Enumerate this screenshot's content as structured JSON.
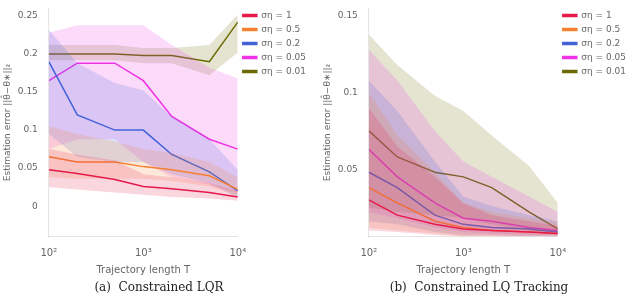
{
  "chart_data": [
    {
      "type": "line",
      "title": "(a)  Constrained LQR",
      "x_label": "Trajectory length T",
      "y_label": "Estimation error ||θ̂−θ∗||₂",
      "x": [
        100,
        200,
        500,
        1000,
        2000,
        5000,
        10000
      ],
      "xlim": [
        100,
        10000
      ],
      "xticks": [
        {
          "value": 100,
          "label": "10²"
        },
        {
          "value": 1000,
          "label": "10³"
        },
        {
          "value": 10000,
          "label": "10⁴"
        }
      ],
      "ylim": [
        -0.04,
        0.26
      ],
      "yticks": [
        0,
        0.05,
        0.1,
        0.15,
        0.2,
        0.25
      ],
      "log": "x",
      "grid": false,
      "legend": "upper right",
      "series": [
        {
          "name": "ση = 1",
          "color": "#e6194b",
          "values": [
            0.048,
            0.043,
            0.035,
            0.026,
            0.023,
            0.018,
            0.012
          ],
          "y_lo": [
            0.025,
            0.022,
            0.018,
            0.015,
            0.012,
            0.01,
            0.007
          ],
          "y_hi": [
            0.075,
            0.068,
            0.06,
            0.042,
            0.038,
            0.03,
            0.02
          ]
        },
        {
          "name": "ση = 0.5",
          "color": "#f58231",
          "values": [
            0.065,
            0.058,
            0.058,
            0.052,
            0.048,
            0.04,
            0.022
          ],
          "y_lo": [
            0.038,
            0.036,
            0.036,
            0.036,
            0.033,
            0.026,
            0.014
          ],
          "y_hi": [
            0.105,
            0.095,
            0.085,
            0.075,
            0.07,
            0.058,
            0.038
          ]
        },
        {
          "name": "ση = 0.2",
          "color": "#4363d8",
          "values": [
            0.19,
            0.12,
            0.1,
            0.1,
            0.068,
            0.045,
            0.02
          ],
          "y_lo": [
            0.095,
            0.065,
            0.058,
            0.058,
            0.042,
            0.03,
            0.011
          ],
          "y_hi": [
            0.232,
            0.188,
            0.162,
            0.152,
            0.118,
            0.088,
            0.048
          ]
        },
        {
          "name": "ση = 0.05",
          "color": "#f032e6",
          "values": [
            0.165,
            0.188,
            0.188,
            0.165,
            0.118,
            0.088,
            0.075
          ],
          "y_lo": [
            0.075,
            0.088,
            0.088,
            0.058,
            0.038,
            0.028,
            0.018
          ],
          "y_hi": [
            0.228,
            0.238,
            0.238,
            0.238,
            0.212,
            0.182,
            0.168
          ]
        },
        {
          "name": "ση = 0.01",
          "color": "#6b6b00",
          "values": [
            0.2,
            0.2,
            0.2,
            0.198,
            0.198,
            0.19,
            0.242
          ],
          "y_lo": [
            0.192,
            0.192,
            0.192,
            0.188,
            0.188,
            0.172,
            0.202
          ],
          "y_hi": [
            0.212,
            0.212,
            0.212,
            0.208,
            0.208,
            0.212,
            0.252
          ]
        }
      ]
    },
    {
      "type": "line",
      "title": "(b)  Constrained LQ Tracking",
      "x_label": "Trajectory length T",
      "y_label": "Estimation error ||θ̂−θ∗||₂",
      "x": [
        100,
        200,
        500,
        1000,
        2000,
        5000,
        10000
      ],
      "xlim": [
        100,
        10000
      ],
      "xticks": [
        {
          "value": 100,
          "label": "10²"
        },
        {
          "value": 1000,
          "label": "10³"
        },
        {
          "value": 10000,
          "label": "10⁴"
        }
      ],
      "ylim": [
        0.006,
        0.155
      ],
      "yticks": [
        0.05,
        0.1,
        0.15
      ],
      "log": "x",
      "grid": false,
      "legend": "upper right",
      "series": [
        {
          "name": "ση = 1",
          "color": "#e6194b",
          "values": [
            0.03,
            0.02,
            0.014,
            0.011,
            0.01,
            0.009,
            0.008
          ],
          "y_lo": [
            0.01,
            0.009,
            0.007,
            0.006,
            0.006,
            0.006,
            0.006
          ],
          "y_hi": [
            0.09,
            0.065,
            0.045,
            0.028,
            0.02,
            0.016,
            0.013
          ]
        },
        {
          "name": "ση = 0.5",
          "color": "#f58231",
          "values": [
            0.038,
            0.028,
            0.016,
            0.012,
            0.01,
            0.009,
            0.008
          ],
          "y_lo": [
            0.012,
            0.01,
            0.008,
            0.006,
            0.006,
            0.006,
            0.006
          ],
          "y_hi": [
            0.1,
            0.072,
            0.048,
            0.028,
            0.022,
            0.018,
            0.015
          ]
        },
        {
          "name": "ση = 0.2",
          "color": "#4363d8",
          "values": [
            0.048,
            0.038,
            0.02,
            0.014,
            0.012,
            0.011,
            0.009
          ],
          "y_lo": [
            0.016,
            0.014,
            0.009,
            0.007,
            0.007,
            0.006,
            0.006
          ],
          "y_hi": [
            0.108,
            0.088,
            0.055,
            0.032,
            0.026,
            0.02,
            0.016
          ]
        },
        {
          "name": "ση = 0.05",
          "color": "#f032e6",
          "values": [
            0.063,
            0.045,
            0.028,
            0.018,
            0.016,
            0.012,
            0.01
          ],
          "y_lo": [
            0.022,
            0.018,
            0.012,
            0.009,
            0.008,
            0.007,
            0.007
          ],
          "y_hi": [
            0.128,
            0.108,
            0.075,
            0.055,
            0.045,
            0.032,
            0.022
          ]
        },
        {
          "name": "ση = 0.01",
          "color": "#6b6b00",
          "values": [
            0.075,
            0.058,
            0.048,
            0.045,
            0.038,
            0.022,
            0.011
          ],
          "y_lo": [
            0.025,
            0.022,
            0.02,
            0.018,
            0.014,
            0.01,
            0.007
          ],
          "y_hi": [
            0.138,
            0.118,
            0.098,
            0.088,
            0.072,
            0.052,
            0.028
          ]
        }
      ]
    }
  ]
}
